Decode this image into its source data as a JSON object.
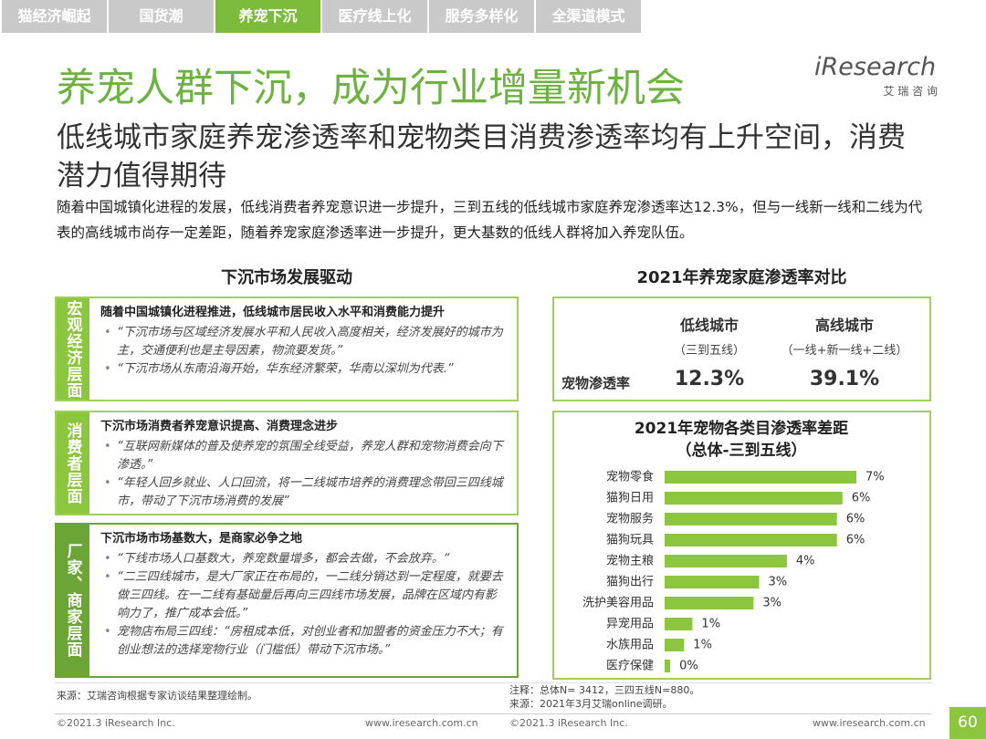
{
  "nav": {
    "tabs": [
      "猫经济崛起",
      "国货潮",
      "养宠下沉",
      "医疗线上化",
      "服务多样化",
      "全渠道模式"
    ]
  },
  "logo": {
    "name": "iResearch",
    "sub": "艾 瑞 咨 询"
  },
  "header": {
    "title": "养宠人群下沉，成为行业增量新机会",
    "subtitle": "低线城市家庭养宠渗透率和宠物类目消费渗透率均有上升空间，消费潜力值得期待",
    "intro": "随着中国城镇化进程的发展，低线消费者养宠意识进一步提升，三到五线的低线城市家庭养宠渗透率达12.3%，但与一线新一线和二线为代表的高线城市尚存一定差距，随着养宠家庭渗透率进一步提升，更大基数的低线人群将加入养宠队伍。"
  },
  "left": {
    "title": "下沉市场发展驱动",
    "groups": [
      {
        "label": "宏观经济层面",
        "heading": "随着中国城镇化进程推进，低线城市居民收入水平和消费能力提升",
        "points": [
          "“下沉市场与区域经济发展水平和人民收入高度相关，经济发展好的城市为主，交通便利也是主导因素，物流要发货。”",
          "“下沉市场从东南沿海开始，华东经济繁荣，华南以深圳为代表.”"
        ]
      },
      {
        "label": "消费者层面",
        "heading": "下沉市场消费者养宠意识提高、消费理念进步",
        "points": [
          "“互联网新媒体的普及使养宠的氛围全线受益，养宠人群和宠物消费会向下渗透。”",
          "“年轻人回乡就业、人口回流，将一二线城市培养的消费理念带回三四线城市，带动了下沉市场消费的发展”"
        ]
      },
      {
        "label": "厂家、商家层面",
        "heading": "下沉市场市场基数大，是商家必争之地",
        "points": [
          "“下线市场人口基数大，养宠数量增多，都会去做，不会放弃。“",
          "“二三四线城市，是大厂家正在布局的，一二线分销达到一定程度，就要去做三四线。在一二线有基础量后再向三四线市场发展，品牌在区域内有影响力了，推广成本会低。”",
          "宠物店布局三四线：“房租成本低，对创业者和加盟者的资金压力不大；有创业想法的选择宠物行业（门槛低）带动下沉市场。”"
        ]
      }
    ]
  },
  "penetration": {
    "title": "2021年养宠家庭渗透率对比",
    "row_label": "宠物渗透率",
    "columns": [
      {
        "name": "低线城市",
        "note": "（三到五线）",
        "value": "12.3%"
      },
      {
        "name": "高线城市",
        "note": "（一线+新一线+二线）",
        "value": "39.1%"
      }
    ]
  },
  "chart_data": {
    "type": "bar",
    "orientation": "horizontal",
    "title": "2021年宠物各类目渗透率差距",
    "subtitle": "（总体-三到五线）",
    "categories": [
      "宠物零食",
      "猫狗日用",
      "宠物服务",
      "猫狗玩具",
      "宠物主粮",
      "猫狗出行",
      "洗护美容用品",
      "异宠用品",
      "水族用品",
      "医疗保健"
    ],
    "values": [
      6.9,
      6.4,
      6.2,
      6.2,
      4.4,
      3.4,
      3.2,
      1.0,
      0.7,
      0.2
    ],
    "value_labels": [
      "7%",
      "6%",
      "6%",
      "6%",
      "4%",
      "3%",
      "3%",
      "1%",
      "1%",
      "0%"
    ],
    "color": "#8cc63f"
  },
  "footer": {
    "source_left": "来源：艾瑞咨询根据专家访谈结果整理绘制。",
    "note_right": "注释：总体N= 3412，三四五线N=880。",
    "source_right": "来源：2021年3月艾瑞online调研。",
    "copyright": "©2021.3 iResearch Inc.",
    "website": "www.iresearch.com.cn",
    "page": "60"
  }
}
